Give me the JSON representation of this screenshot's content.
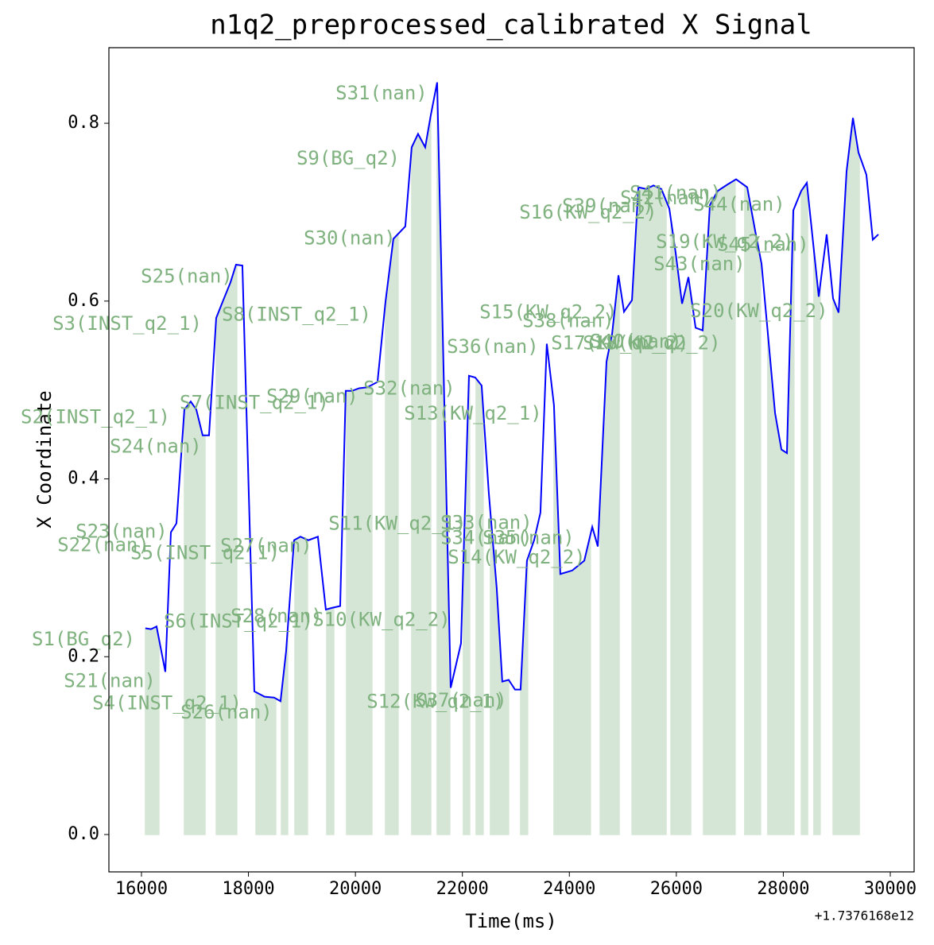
{
  "chart_data": {
    "type": "line",
    "title": "n1q2_preprocessed_calibrated X Signal",
    "xlabel": "Time(ms)",
    "ylabel": "X Coordinate",
    "x_offset_label": "+1.7376168e12",
    "xlim": [
      15391,
      30446
    ],
    "ylim": [
      -0.042,
      0.885
    ],
    "xticks": [
      16000,
      18000,
      20000,
      22000,
      24000,
      26000,
      28000,
      30000
    ],
    "yticks": [
      {
        "value": 0,
        "label": "0.0"
      },
      {
        "value": 0.2,
        "label": "0.2"
      },
      {
        "value": 0.4,
        "label": "0.4"
      },
      {
        "value": 0.6,
        "label": "0.6"
      },
      {
        "value": 0.8,
        "label": "0.8"
      }
    ],
    "series": [
      {
        "color": "#0000ff",
        "x": [
          16074,
          16178,
          16282,
          16446,
          16550,
          16654,
          16802,
          16921,
          17025,
          17144,
          17263,
          17397,
          17516,
          17664,
          17768,
          17887,
          18110,
          18303,
          18481,
          18600,
          18704,
          18853,
          18972,
          19120,
          19298,
          19447,
          19566,
          19715,
          19819,
          19938,
          20071,
          20220,
          20413,
          20562,
          20710,
          20933,
          21052,
          21171,
          21305,
          21409,
          21528,
          21781,
          21974,
          22123,
          22241,
          22360,
          22494,
          22642,
          22746,
          22865,
          22984,
          23088,
          23207,
          23341,
          23459,
          23578,
          23712,
          23831,
          24054,
          24279,
          24428,
          24532,
          24695,
          24799,
          24918,
          25022,
          25171,
          25290,
          25438,
          25572,
          25721,
          25869,
          25988,
          26107,
          26226,
          26360,
          26493,
          26627,
          26775,
          26954,
          27117,
          27325,
          27474,
          27593,
          27846,
          27965,
          28068,
          28187,
          28336,
          28440,
          28663,
          28811,
          28930,
          29034,
          29183,
          29302,
          29406,
          29554,
          29673,
          29777
        ],
        "values": [
          0.232,
          0.231,
          0.234,
          0.183,
          0.34,
          0.35,
          0.478,
          0.487,
          0.478,
          0.449,
          0.449,
          0.581,
          0.599,
          0.621,
          0.641,
          0.64,
          0.161,
          0.155,
          0.154,
          0.15,
          0.206,
          0.331,
          0.335,
          0.331,
          0.335,
          0.253,
          0.255,
          0.257,
          0.499,
          0.499,
          0.502,
          0.503,
          0.509,
          0.599,
          0.67,
          0.684,
          0.773,
          0.788,
          0.773,
          0.809,
          0.846,
          0.165,
          0.215,
          0.516,
          0.514,
          0.505,
          0.384,
          0.277,
          0.172,
          0.174,
          0.163,
          0.163,
          0.308,
          0.331,
          0.362,
          0.552,
          0.483,
          0.293,
          0.297,
          0.308,
          0.346,
          0.324,
          0.532,
          0.563,
          0.629,
          0.588,
          0.601,
          0.728,
          0.726,
          0.73,
          0.726,
          0.704,
          0.654,
          0.597,
          0.627,
          0.57,
          0.567,
          0.708,
          0.724,
          0.731,
          0.737,
          0.728,
          0.679,
          0.642,
          0.474,
          0.433,
          0.429,
          0.702,
          0.724,
          0.733,
          0.605,
          0.675,
          0.603,
          0.587,
          0.746,
          0.806,
          0.767,
          0.742,
          0.669,
          0.675
        ]
      }
    ],
    "span_color": "#d6e6d6",
    "spans": [
      {
        "start": 16074,
        "end": 16327
      },
      {
        "start": 16802,
        "end": 17189
      },
      {
        "start": 17397,
        "end": 17783
      },
      {
        "start": 18140,
        "end": 18511
      },
      {
        "start": 18615,
        "end": 18734
      },
      {
        "start": 18868,
        "end": 19105
      },
      {
        "start": 19462,
        "end": 19596
      },
      {
        "start": 19834,
        "end": 20309
      },
      {
        "start": 20562,
        "end": 20799
      },
      {
        "start": 21052,
        "end": 21409
      },
      {
        "start": 21528,
        "end": 21765
      },
      {
        "start": 22018,
        "end": 22137
      },
      {
        "start": 22256,
        "end": 22389
      },
      {
        "start": 22523,
        "end": 22865
      },
      {
        "start": 23088,
        "end": 23221
      },
      {
        "start": 23712,
        "end": 24395
      },
      {
        "start": 24576,
        "end": 24933
      },
      {
        "start": 25171,
        "end": 25810
      },
      {
        "start": 25899,
        "end": 26270
      },
      {
        "start": 26508,
        "end": 27100
      },
      {
        "start": 27278,
        "end": 27575
      },
      {
        "start": 27709,
        "end": 28199
      },
      {
        "start": 28336,
        "end": 28455
      },
      {
        "start": 28571,
        "end": 28690
      },
      {
        "start": 28930,
        "end": 29421
      }
    ],
    "annotations": [
      {
        "text": "S1(BG_q2)",
        "x": 14915,
        "y": 0.219
      },
      {
        "text": "S2(INST_q2_1)",
        "x": 15138,
        "y": 0.469
      },
      {
        "text": "S3(INST_q2_1)",
        "x": 15733,
        "y": 0.574
      },
      {
        "text": "S4(INST_q2_1)",
        "x": 16476,
        "y": 0.147
      },
      {
        "text": "S5(INST_q2_1)",
        "x": 17189,
        "y": 0.316
      },
      {
        "text": "S6(INST_q2_1)",
        "x": 17813,
        "y": 0.239
      },
      {
        "text": "S7(INST_q2_1)",
        "x": 18110,
        "y": 0.485
      },
      {
        "text": "S8(INST_q2_1)",
        "x": 18898,
        "y": 0.584
      },
      {
        "text": "S9(BG_q2)",
        "x": 19864,
        "y": 0.76
      },
      {
        "text": "S10(KW_q2_2)",
        "x": 20488,
        "y": 0.241
      },
      {
        "text": "S11(KW_q2_1)",
        "x": 20785,
        "y": 0.349
      },
      {
        "text": "S12(KW_q2_1)",
        "x": 21498,
        "y": 0.149
      },
      {
        "text": "S13(KW_q2_1)",
        "x": 22197,
        "y": 0.473
      },
      {
        "text": "S14(KW_q2_2)",
        "x": 23014,
        "y": 0.311
      },
      {
        "text": "S15(KW_q2_2)",
        "x": 23608,
        "y": 0.587
      },
      {
        "text": "S16(KW_q2_2)",
        "x": 24351,
        "y": 0.699
      },
      {
        "text": "S17(KW_q2_2)",
        "x": 24946,
        "y": 0.552
      },
      {
        "text": "S18(KW_q2_2)",
        "x": 25540,
        "y": 0.552
      },
      {
        "text": "S19(KW_q2_2)",
        "x": 26907,
        "y": 0.666
      },
      {
        "text": "S20(KW_q2_2)",
        "x": 27546,
        "y": 0.588
      },
      {
        "text": "S21(nan)",
        "x": 15406,
        "y": 0.172
      },
      {
        "text": "S22(nan)",
        "x": 15287,
        "y": 0.325
      },
      {
        "text": "S23(nan)",
        "x": 15628,
        "y": 0.34
      },
      {
        "text": "S24(nan)",
        "x": 16267,
        "y": 0.436
      },
      {
        "text": "S25(nan)",
        "x": 16847,
        "y": 0.627
      },
      {
        "text": "S26(nan)",
        "x": 17590,
        "y": 0.137
      },
      {
        "text": "S27(nan)",
        "x": 18333,
        "y": 0.324
      },
      {
        "text": "S28(nan)",
        "x": 18526,
        "y": 0.245
      },
      {
        "text": "S29(nan)",
        "x": 19195,
        "y": 0.492
      },
      {
        "text": "S30(nan)",
        "x": 19893,
        "y": 0.67
      },
      {
        "text": "S31(nan)",
        "x": 20488,
        "y": 0.833
      },
      {
        "text": "S32(nan)",
        "x": 21008,
        "y": 0.501
      },
      {
        "text": "S33(nan)",
        "x": 22449,
        "y": 0.35
      },
      {
        "text": "S34(nan)",
        "x": 22449,
        "y": 0.333
      },
      {
        "text": "S35(nan)",
        "x": 23237,
        "y": 0.333
      },
      {
        "text": "S36(nan)",
        "x": 22568,
        "y": 0.548
      },
      {
        "text": "S37(nan)",
        "x": 21974,
        "y": 0.15
      },
      {
        "text": "S38(nan)",
        "x": 23980,
        "y": 0.577
      },
      {
        "text": "S39(nan)",
        "x": 24723,
        "y": 0.706
      },
      {
        "text": "S40(nan)",
        "x": 25243,
        "y": 0.554
      },
      {
        "text": "S41(nan)",
        "x": 25986,
        "y": 0.721
      },
      {
        "text": "S42(nan)",
        "x": 25808,
        "y": 0.715
      },
      {
        "text": "S43(nan)",
        "x": 26432,
        "y": 0.641
      },
      {
        "text": "S44(nan)",
        "x": 27175,
        "y": 0.708
      },
      {
        "text": "S45(nan)",
        "x": 27621,
        "y": 0.663
      }
    ]
  }
}
